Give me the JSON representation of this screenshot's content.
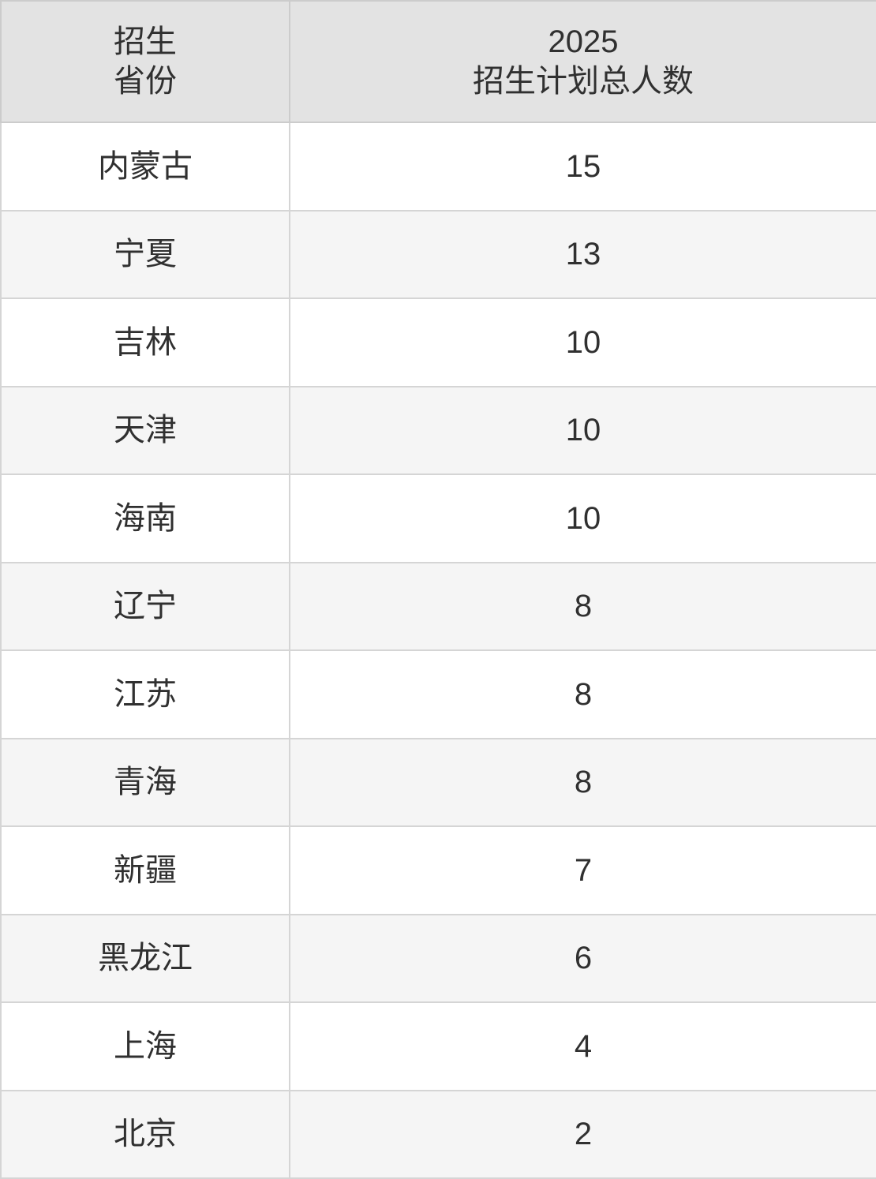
{
  "colors": {
    "header_bg": "#e3e3e3",
    "stripe_bg": "#f5f5f5",
    "row_bg": "#ffffff",
    "border": "#d5d5d5",
    "outer_border": "#cccccc",
    "text": "#303030"
  },
  "table": {
    "header": {
      "province_line1": "招生",
      "province_line2": "省份",
      "plan_line1": "2025",
      "plan_line2": "招生计划总人数"
    },
    "rows": [
      {
        "province": "内蒙古",
        "value": "15"
      },
      {
        "province": "宁夏",
        "value": "13"
      },
      {
        "province": "吉林",
        "value": "10"
      },
      {
        "province": "天津",
        "value": "10"
      },
      {
        "province": "海南",
        "value": "10"
      },
      {
        "province": "辽宁",
        "value": "8"
      },
      {
        "province": "江苏",
        "value": "8"
      },
      {
        "province": "青海",
        "value": "8"
      },
      {
        "province": "新疆",
        "value": "7"
      },
      {
        "province": "黑龙江",
        "value": "6"
      },
      {
        "province": "上海",
        "value": "4"
      },
      {
        "province": "北京",
        "value": "2"
      }
    ]
  },
  "chart_data": {
    "type": "table",
    "columns": [
      "招生省份",
      "2025招生计划总人数"
    ],
    "categories": [
      "内蒙古",
      "宁夏",
      "吉林",
      "天津",
      "海南",
      "辽宁",
      "江苏",
      "青海",
      "新疆",
      "黑龙江",
      "上海",
      "北京"
    ],
    "values": [
      15,
      13,
      10,
      10,
      10,
      8,
      8,
      8,
      7,
      6,
      4,
      2
    ],
    "layout_hints": {
      "header_background": "#e3e3e3",
      "zebra_striping": true,
      "all_cells_centered": true
    }
  }
}
